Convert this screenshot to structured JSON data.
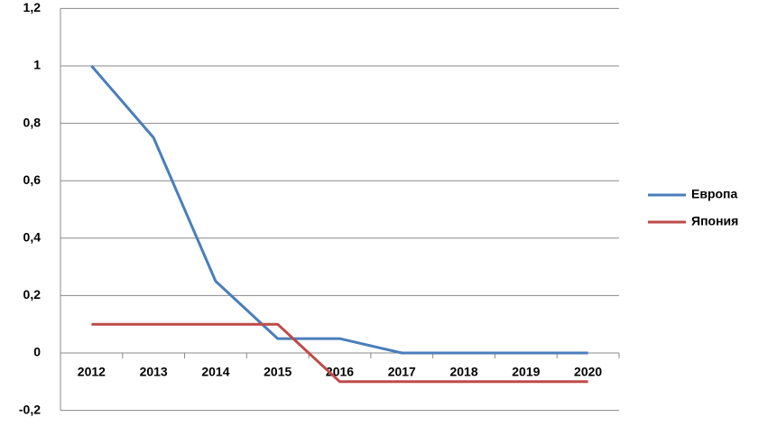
{
  "chart_data": {
    "type": "line",
    "categories": [
      "2012",
      "2013",
      "2014",
      "2015",
      "2016",
      "2017",
      "2018",
      "2019",
      "2020"
    ],
    "series": [
      {
        "name": "Европа",
        "color": "#4a7ebb",
        "values": [
          1,
          0.75,
          0.25,
          0.05,
          0.05,
          0,
          0,
          0,
          0
        ]
      },
      {
        "name": "Япония",
        "color": "#be4b48",
        "values": [
          0.1,
          0.1,
          0.1,
          0.1,
          -0.1,
          -0.1,
          -0.1,
          -0.1,
          -0.1
        ]
      }
    ],
    "ylim": [
      -0.2,
      1.2
    ],
    "yticks": [
      {
        "value": -0.2,
        "label": "-0,2"
      },
      0,
      {
        "value": 0.2,
        "label": "0,2"
      },
      {
        "value": 0.4,
        "label": "0,4"
      },
      {
        "value": 0.6,
        "label": "0,6"
      },
      {
        "value": 0.8,
        "label": "0,8"
      },
      1,
      {
        "value": 1.2,
        "label": "1,2"
      }
    ],
    "grid": true,
    "legend": "right"
  }
}
